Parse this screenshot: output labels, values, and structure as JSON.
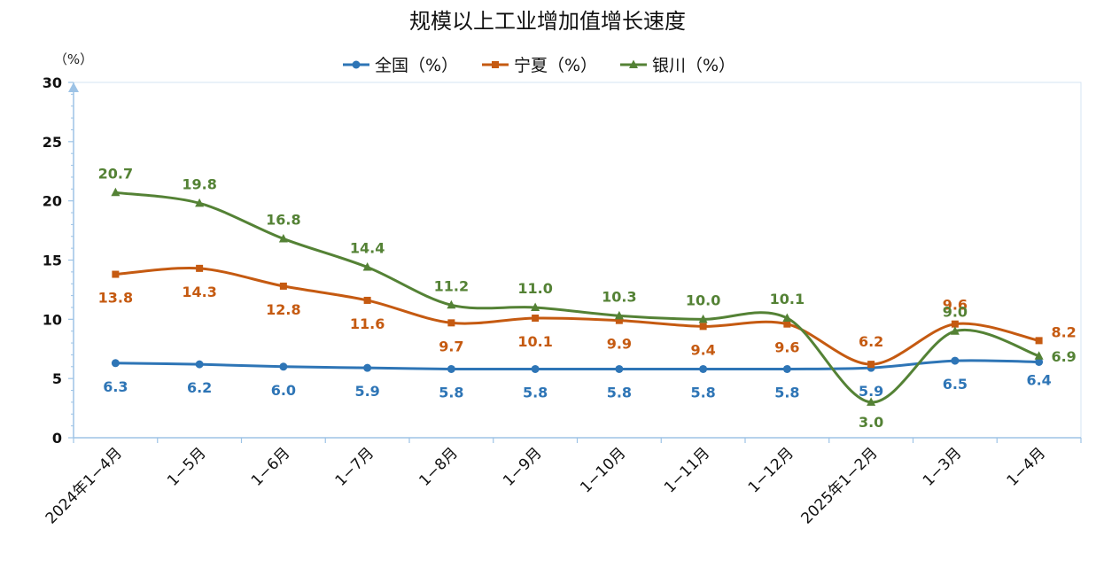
{
  "chart_data": {
    "type": "line",
    "title": "规模以上工业增加值增长速度",
    "ylabel": "（%）",
    "ylim": [
      0,
      30
    ],
    "yticks": [
      "0",
      "5",
      "10",
      "15",
      "20",
      "25",
      "30"
    ],
    "categories": [
      "2024年1−4月",
      "1−5月",
      "1−6月",
      "1−7月",
      "1−8月",
      "1−9月",
      "1−10月",
      "1−11月",
      "1−12月",
      "2025年1−2月",
      "1−3月",
      "1−4月"
    ],
    "legend_position": "top-center",
    "grid": false,
    "series": [
      {
        "name": "全国（%）",
        "color": "#2E75B6",
        "marker": "circle",
        "values": [
          6.3,
          6.2,
          6.0,
          5.9,
          5.8,
          5.8,
          5.8,
          5.8,
          5.8,
          5.9,
          6.5,
          6.4
        ],
        "labels": [
          "6.3",
          "6.2",
          "6.0",
          "5.9",
          "5.8",
          "5.8",
          "5.8",
          "5.8",
          "5.8",
          "5.9",
          "6.5",
          "6.4"
        ]
      },
      {
        "name": "宁夏（%）",
        "color": "#C55A11",
        "marker": "square",
        "values": [
          13.8,
          14.3,
          12.8,
          11.6,
          9.7,
          10.1,
          9.9,
          9.4,
          9.6,
          6.2,
          9.6,
          8.2
        ],
        "labels": [
          "13.8",
          "14.3",
          "12.8",
          "11.6",
          "9.7",
          "10.1",
          "9.9",
          "9.4",
          "9.6",
          "6.2",
          "9.6",
          "8.2"
        ]
      },
      {
        "name": "银川（%）",
        "color": "#548235",
        "marker": "triangle",
        "values": [
          20.7,
          19.8,
          16.8,
          14.4,
          11.2,
          11.0,
          10.3,
          10.0,
          10.1,
          3.0,
          9.0,
          6.9
        ],
        "labels": [
          "20.7",
          "19.8",
          "16.8",
          "14.4",
          "11.2",
          "11.0",
          "10.3",
          "10.0",
          "10.1",
          "3.0",
          "9.0",
          "6.9"
        ]
      }
    ]
  }
}
